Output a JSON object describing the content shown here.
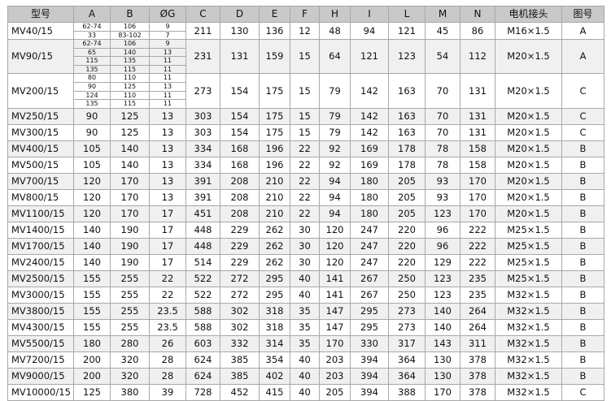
{
  "headers": [
    "型号",
    "A",
    "B",
    "ØG",
    "C",
    "D",
    "E",
    "F",
    "H",
    "I",
    "L",
    "M",
    "N",
    "电机接头",
    "图号"
  ],
  "multi_rows": [
    {
      "model": "MV40/15",
      "A": [
        "62-74",
        "33"
      ],
      "B": [
        "106",
        "83-102"
      ],
      "G": [
        "9",
        "7"
      ],
      "rest": [
        "211",
        "130",
        "136",
        "12",
        "48",
        "94",
        "121",
        "45",
        "86",
        "M16×1.5",
        "A"
      ]
    },
    {
      "model": "MV90/15",
      "A": [
        "62-74",
        "65",
        "115",
        "135"
      ],
      "B": [
        "106",
        "140",
        "135",
        "115"
      ],
      "G": [
        "9",
        "13",
        "11",
        "11"
      ],
      "rest": [
        "231",
        "131",
        "159",
        "15",
        "64",
        "121",
        "123",
        "54",
        "112",
        "M20×1.5",
        "A"
      ]
    },
    {
      "model": "MV200/15",
      "A": [
        "80",
        "90",
        "124",
        "135"
      ],
      "B": [
        "110",
        "125",
        "110",
        "115"
      ],
      "G": [
        "11",
        "13",
        "11",
        "11"
      ],
      "rest": [
        "273",
        "154",
        "175",
        "15",
        "79",
        "142",
        "163",
        "70",
        "131",
        "M20×1.5",
        "C"
      ]
    }
  ],
  "rows": [
    [
      "MV250/15",
      "90",
      "125",
      "13",
      "303",
      "154",
      "175",
      "15",
      "79",
      "142",
      "163",
      "70",
      "131",
      "M20×1.5",
      "C"
    ],
    [
      "MV300/15",
      "90",
      "125",
      "13",
      "303",
      "154",
      "175",
      "15",
      "79",
      "142",
      "163",
      "70",
      "131",
      "M20×1.5",
      "C"
    ],
    [
      "MV400/15",
      "105",
      "140",
      "13",
      "334",
      "168",
      "196",
      "22",
      "92",
      "169",
      "178",
      "78",
      "158",
      "M20×1.5",
      "B"
    ],
    [
      "MV500/15",
      "105",
      "140",
      "13",
      "334",
      "168",
      "196",
      "22",
      "92",
      "169",
      "178",
      "78",
      "158",
      "M20×1.5",
      "B"
    ],
    [
      "MV700/15",
      "120",
      "170",
      "13",
      "391",
      "208",
      "210",
      "22",
      "94",
      "180",
      "205",
      "93",
      "170",
      "M20×1.5",
      "B"
    ],
    [
      "MV800/15",
      "120",
      "170",
      "13",
      "391",
      "208",
      "210",
      "22",
      "94",
      "180",
      "205",
      "93",
      "170",
      "M20×1.5",
      "B"
    ],
    [
      "MV1100/15",
      "120",
      "170",
      "17",
      "451",
      "208",
      "210",
      "22",
      "94",
      "180",
      "205",
      "123",
      "170",
      "M20×1.5",
      "B"
    ],
    [
      "MV1400/15",
      "140",
      "190",
      "17",
      "448",
      "229",
      "262",
      "30",
      "120",
      "247",
      "220",
      "96",
      "222",
      "M25×1.5",
      "B"
    ],
    [
      "MV1700/15",
      "140",
      "190",
      "17",
      "448",
      "229",
      "262",
      "30",
      "120",
      "247",
      "220",
      "96",
      "222",
      "M25×1.5",
      "B"
    ],
    [
      "MV2400/15",
      "140",
      "190",
      "17",
      "514",
      "229",
      "262",
      "30",
      "120",
      "247",
      "220",
      "129",
      "222",
      "M25×1.5",
      "B"
    ],
    [
      "MV2500/15",
      "155",
      "255",
      "22",
      "522",
      "272",
      "295",
      "40",
      "141",
      "267",
      "250",
      "123",
      "235",
      "M25×1.5",
      "B"
    ],
    [
      "MV3000/15",
      "155",
      "255",
      "22",
      "522",
      "272",
      "295",
      "40",
      "141",
      "267",
      "250",
      "123",
      "235",
      "M32×1.5",
      "B"
    ],
    [
      "MV3800/15",
      "155",
      "255",
      "23.5",
      "588",
      "302",
      "318",
      "35",
      "147",
      "295",
      "273",
      "140",
      "264",
      "M32×1.5",
      "B"
    ],
    [
      "MV4300/15",
      "155",
      "255",
      "23.5",
      "588",
      "302",
      "318",
      "35",
      "147",
      "295",
      "273",
      "140",
      "264",
      "M32×1.5",
      "B"
    ],
    [
      "MV5500/15",
      "180",
      "280",
      "26",
      "603",
      "332",
      "314",
      "35",
      "170",
      "330",
      "317",
      "143",
      "311",
      "M32×1.5",
      "B"
    ],
    [
      "MV7200/15",
      "200",
      "320",
      "28",
      "624",
      "385",
      "354",
      "40",
      "203",
      "394",
      "364",
      "130",
      "378",
      "M32×1.5",
      "B"
    ],
    [
      "MV9000/15",
      "200",
      "320",
      "28",
      "624",
      "385",
      "402",
      "40",
      "203",
      "394",
      "364",
      "130",
      "378",
      "M32×1.5",
      "B"
    ],
    [
      "MV10000/15",
      "125",
      "380",
      "39",
      "728",
      "452",
      "415",
      "40",
      "205",
      "394",
      "388",
      "170",
      "378",
      "M32×1.5",
      "C"
    ]
  ]
}
